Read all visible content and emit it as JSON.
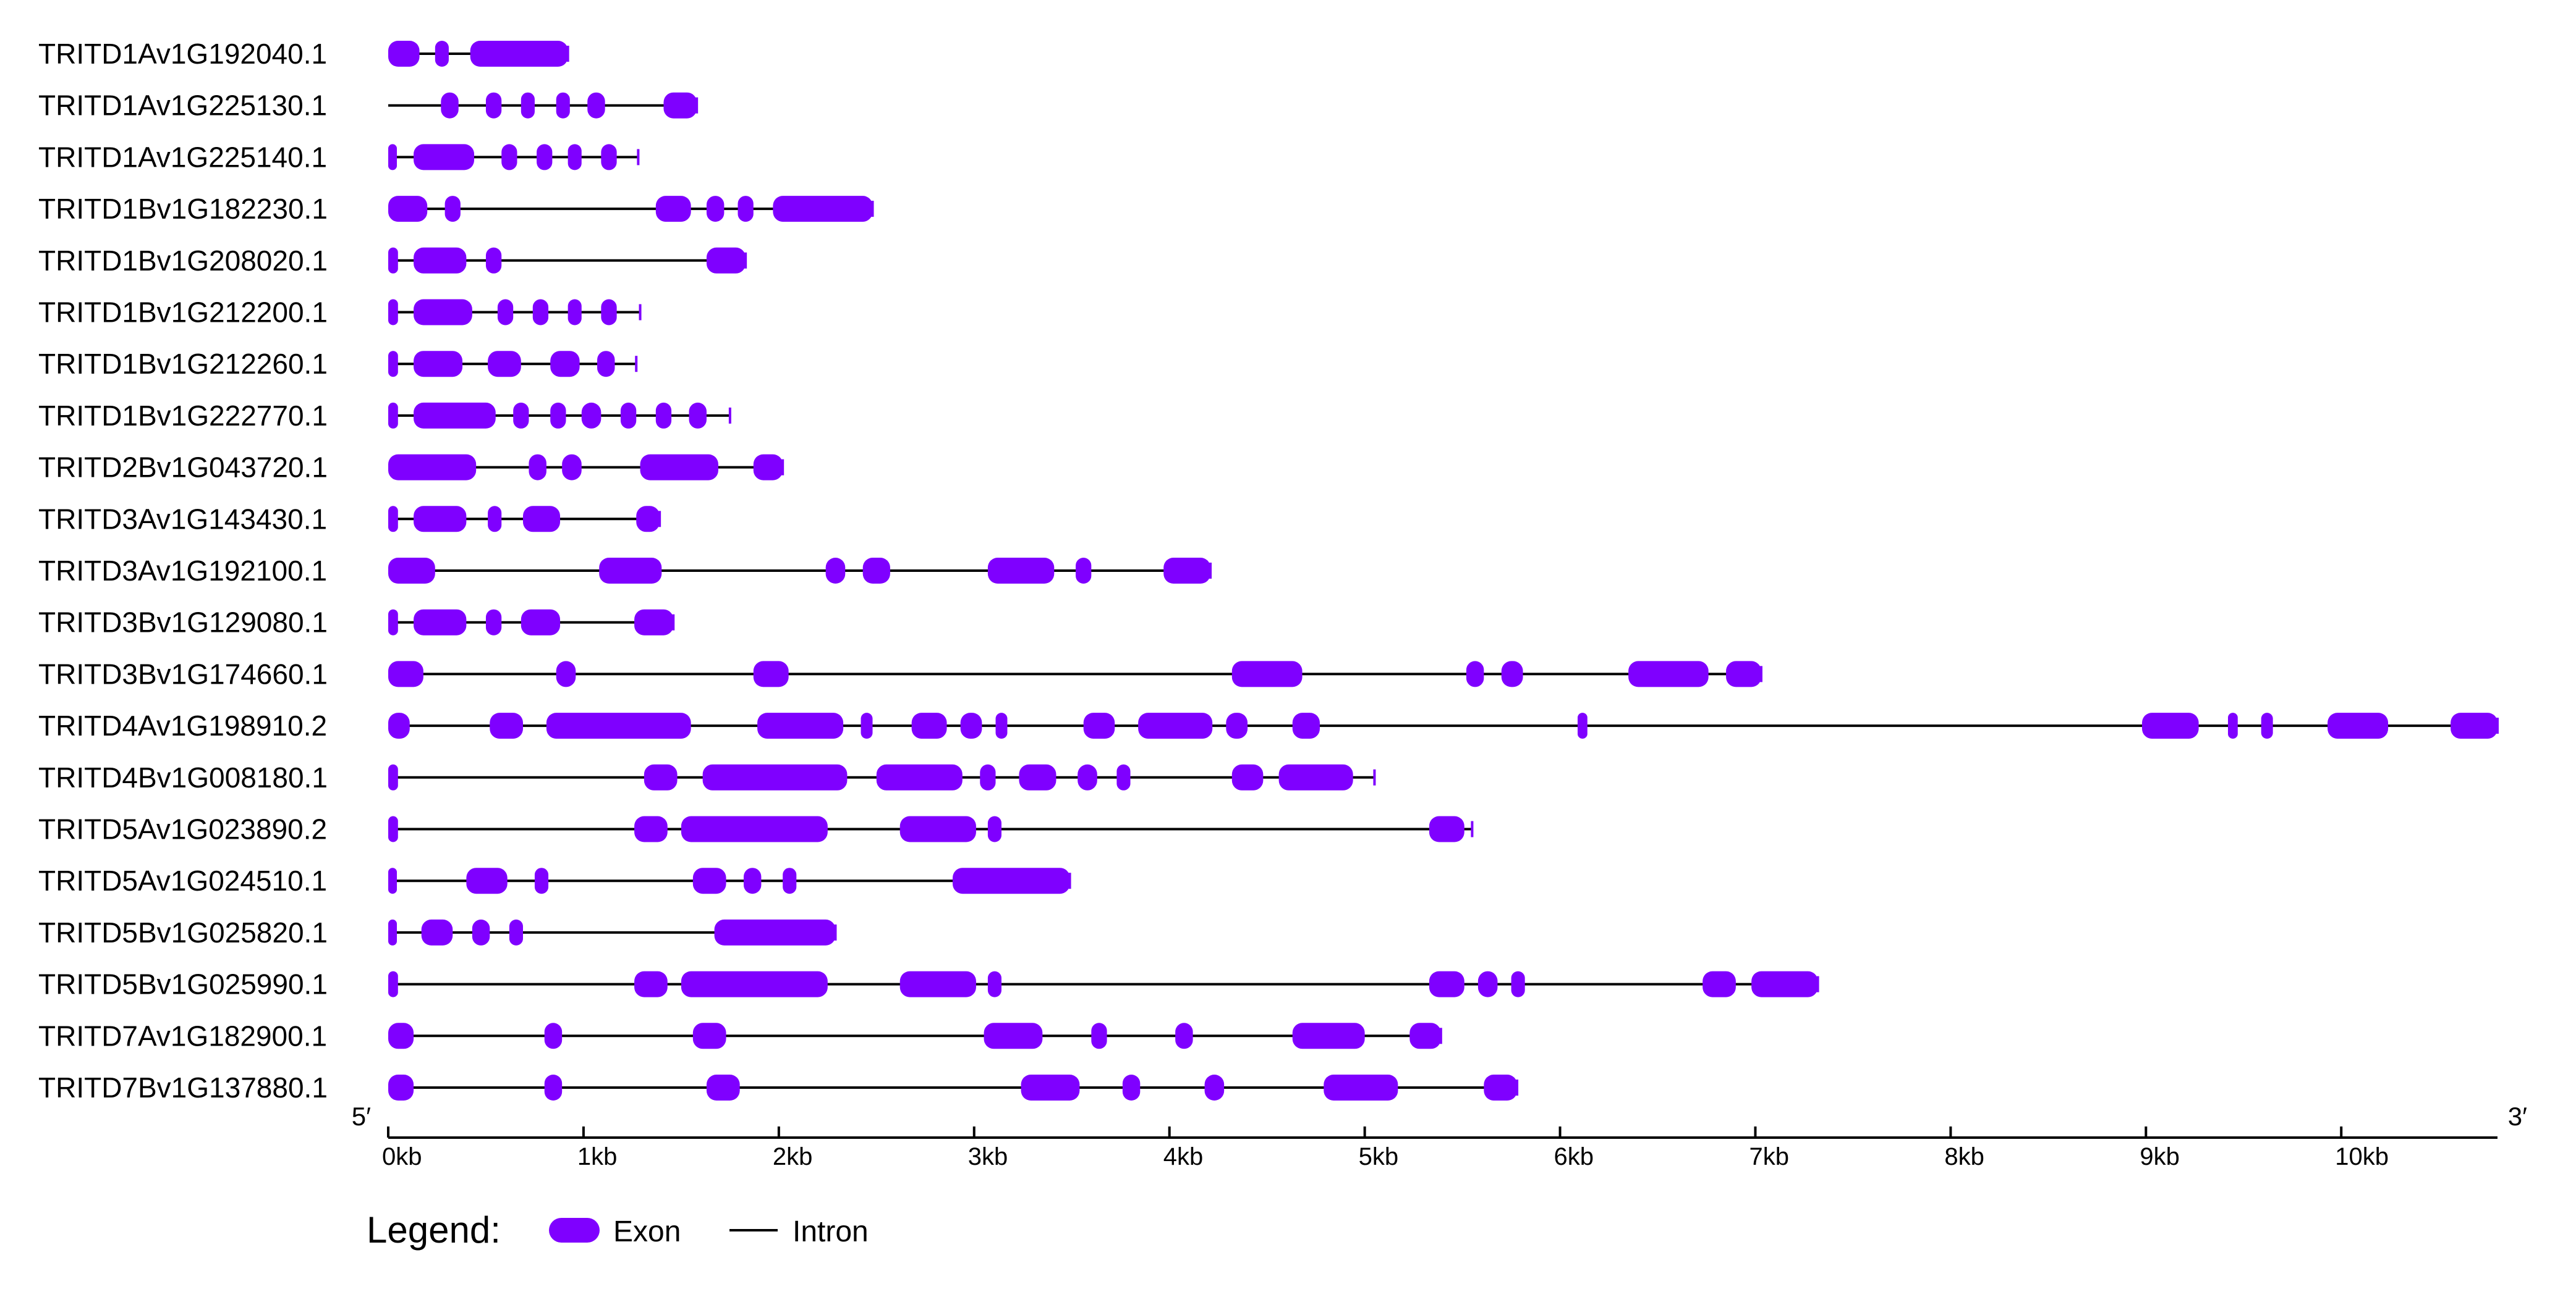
{
  "figure": {
    "five_prime": "5′",
    "three_prime": "3′"
  },
  "colors": {
    "exon": "#7f00ff",
    "intron": "#000000",
    "axis": "#000000"
  },
  "axis": {
    "min_bp": 0,
    "max_bp": 10800,
    "ticks": [
      {
        "value": 0,
        "label": "0kb"
      },
      {
        "value": 1000,
        "label": "1kb"
      },
      {
        "value": 2000,
        "label": "2kb"
      },
      {
        "value": 3000,
        "label": "3kb"
      },
      {
        "value": 4000,
        "label": "4kb"
      },
      {
        "value": 5000,
        "label": "5kb"
      },
      {
        "value": 6000,
        "label": "6kb"
      },
      {
        "value": 7000,
        "label": "7kb"
      },
      {
        "value": 8000,
        "label": "8kb"
      },
      {
        "value": 9000,
        "label": "9kb"
      },
      {
        "value": 10000,
        "label": "10kb"
      }
    ]
  },
  "legend": {
    "title": "Legend:",
    "exon_label": "Exon",
    "intron_label": "Intron"
  },
  "genes": [
    {
      "name": "TRITD1Av1G192040.1",
      "length": 920,
      "exons": [
        [
          0,
          160
        ],
        [
          240,
          310
        ],
        [
          420,
          920
        ]
      ]
    },
    {
      "name": "TRITD1Av1G225130.1",
      "length": 1580,
      "exons": [
        [
          270,
          360
        ],
        [
          500,
          580
        ],
        [
          680,
          750
        ],
        [
          860,
          930
        ],
        [
          1020,
          1110
        ],
        [
          1410,
          1580
        ]
      ]
    },
    {
      "name": "TRITD1Av1G225140.1",
      "length": 1280,
      "exons": [
        [
          0,
          40
        ],
        [
          130,
          440
        ],
        [
          580,
          660
        ],
        [
          760,
          840
        ],
        [
          920,
          990
        ],
        [
          1090,
          1170
        ]
      ]
    },
    {
      "name": "TRITD1Bv1G182230.1",
      "length": 2480,
      "exons": [
        [
          0,
          200
        ],
        [
          290,
          370
        ],
        [
          1370,
          1550
        ],
        [
          1630,
          1720
        ],
        [
          1790,
          1870
        ],
        [
          1970,
          2480
        ]
      ]
    },
    {
      "name": "TRITD1Bv1G208020.1",
      "length": 1830,
      "exons": [
        [
          0,
          50
        ],
        [
          130,
          400
        ],
        [
          500,
          580
        ],
        [
          1630,
          1830
        ]
      ]
    },
    {
      "name": "TRITD1Bv1G212200.1",
      "length": 1290,
      "exons": [
        [
          0,
          50
        ],
        [
          130,
          430
        ],
        [
          560,
          640
        ],
        [
          740,
          820
        ],
        [
          920,
          990
        ],
        [
          1090,
          1170
        ]
      ]
    },
    {
      "name": "TRITD1Bv1G212260.1",
      "length": 1270,
      "exons": [
        [
          0,
          50
        ],
        [
          130,
          380
        ],
        [
          510,
          680
        ],
        [
          830,
          980
        ],
        [
          1070,
          1160
        ]
      ]
    },
    {
      "name": "TRITD1Bv1G222770.1",
      "length": 1750,
      "exons": [
        [
          0,
          50
        ],
        [
          130,
          550
        ],
        [
          640,
          720
        ],
        [
          830,
          910
        ],
        [
          990,
          1090
        ],
        [
          1190,
          1270
        ],
        [
          1370,
          1450
        ],
        [
          1540,
          1630
        ]
      ]
    },
    {
      "name": "TRITD2Bv1G043720.1",
      "length": 2020,
      "exons": [
        [
          0,
          450
        ],
        [
          720,
          810
        ],
        [
          890,
          990
        ],
        [
          1290,
          1690
        ],
        [
          1870,
          2020
        ]
      ]
    },
    {
      "name": "TRITD3Av1G143430.1",
      "length": 1390,
      "exons": [
        [
          0,
          50
        ],
        [
          130,
          400
        ],
        [
          510,
          580
        ],
        [
          690,
          880
        ],
        [
          1270,
          1390
        ]
      ]
    },
    {
      "name": "TRITD3Av1G192100.1",
      "length": 4210,
      "exons": [
        [
          0,
          240
        ],
        [
          1080,
          1400
        ],
        [
          2240,
          2340
        ],
        [
          2430,
          2570
        ],
        [
          3070,
          3410
        ],
        [
          3520,
          3600
        ],
        [
          3970,
          4210
        ]
      ]
    },
    {
      "name": "TRITD3Bv1G129080.1",
      "length": 1460,
      "exons": [
        [
          0,
          50
        ],
        [
          130,
          400
        ],
        [
          500,
          580
        ],
        [
          680,
          880
        ],
        [
          1260,
          1460
        ]
      ]
    },
    {
      "name": "TRITD3Bv1G174660.1",
      "length": 7030,
      "exons": [
        [
          0,
          180
        ],
        [
          860,
          960
        ],
        [
          1870,
          2050
        ],
        [
          4320,
          4680
        ],
        [
          5520,
          5610
        ],
        [
          5700,
          5810
        ],
        [
          6350,
          6760
        ],
        [
          6850,
          7030
        ]
      ]
    },
    {
      "name": "TRITD4Av1G198910.2",
      "length": 10800,
      "exons": [
        [
          0,
          110
        ],
        [
          520,
          690
        ],
        [
          810,
          1550
        ],
        [
          1890,
          2330
        ],
        [
          2420,
          2480
        ],
        [
          2680,
          2860
        ],
        [
          2930,
          3040
        ],
        [
          3110,
          3170
        ],
        [
          3560,
          3720
        ],
        [
          3840,
          4220
        ],
        [
          4290,
          4400
        ],
        [
          4630,
          4770
        ],
        [
          6090,
          6140
        ],
        [
          8980,
          9270
        ],
        [
          9420,
          9470
        ],
        [
          9590,
          9650
        ],
        [
          9930,
          10240
        ],
        [
          10560,
          10800
        ]
      ]
    },
    {
      "name": "TRITD4Bv1G008180.1",
      "length": 5050,
      "exons": [
        [
          0,
          50
        ],
        [
          1310,
          1480
        ],
        [
          1610,
          2350
        ],
        [
          2500,
          2940
        ],
        [
          3030,
          3110
        ],
        [
          3230,
          3420
        ],
        [
          3530,
          3630
        ],
        [
          3730,
          3800
        ],
        [
          4320,
          4480
        ],
        [
          4560,
          4940
        ]
      ]
    },
    {
      "name": "TRITD5Av1G023890.2",
      "length": 5550,
      "exons": [
        [
          0,
          50
        ],
        [
          1260,
          1430
        ],
        [
          1500,
          2250
        ],
        [
          2620,
          3010
        ],
        [
          3070,
          3140
        ],
        [
          5330,
          5510
        ]
      ]
    },
    {
      "name": "TRITD5Av1G024510.1",
      "length": 3490,
      "exons": [
        [
          0,
          40
        ],
        [
          400,
          610
        ],
        [
          750,
          820
        ],
        [
          1560,
          1730
        ],
        [
          1820,
          1910
        ],
        [
          2020,
          2090
        ],
        [
          2890,
          3490
        ]
      ]
    },
    {
      "name": "TRITD5Bv1G025820.1",
      "length": 2290,
      "exons": [
        [
          0,
          30
        ],
        [
          170,
          330
        ],
        [
          430,
          520
        ],
        [
          620,
          690
        ],
        [
          1670,
          2290
        ]
      ]
    },
    {
      "name": "TRITD5Bv1G025990.1",
      "length": 7320,
      "exons": [
        [
          0,
          50
        ],
        [
          1260,
          1430
        ],
        [
          1500,
          2250
        ],
        [
          2620,
          3010
        ],
        [
          3070,
          3140
        ],
        [
          5330,
          5510
        ],
        [
          5580,
          5680
        ],
        [
          5750,
          5820
        ],
        [
          6730,
          6900
        ],
        [
          6980,
          7320
        ]
      ]
    },
    {
      "name": "TRITD7Av1G182900.1",
      "length": 5390,
      "exons": [
        [
          0,
          130
        ],
        [
          800,
          890
        ],
        [
          1560,
          1730
        ],
        [
          3050,
          3350
        ],
        [
          3600,
          3680
        ],
        [
          4030,
          4120
        ],
        [
          4630,
          5000
        ],
        [
          5230,
          5390
        ]
      ]
    },
    {
      "name": "TRITD7Bv1G137880.1",
      "length": 5780,
      "exons": [
        [
          0,
          130
        ],
        [
          800,
          890
        ],
        [
          1630,
          1800
        ],
        [
          3240,
          3540
        ],
        [
          3760,
          3850
        ],
        [
          4180,
          4280
        ],
        [
          4790,
          5170
        ],
        [
          5610,
          5780
        ]
      ]
    }
  ]
}
